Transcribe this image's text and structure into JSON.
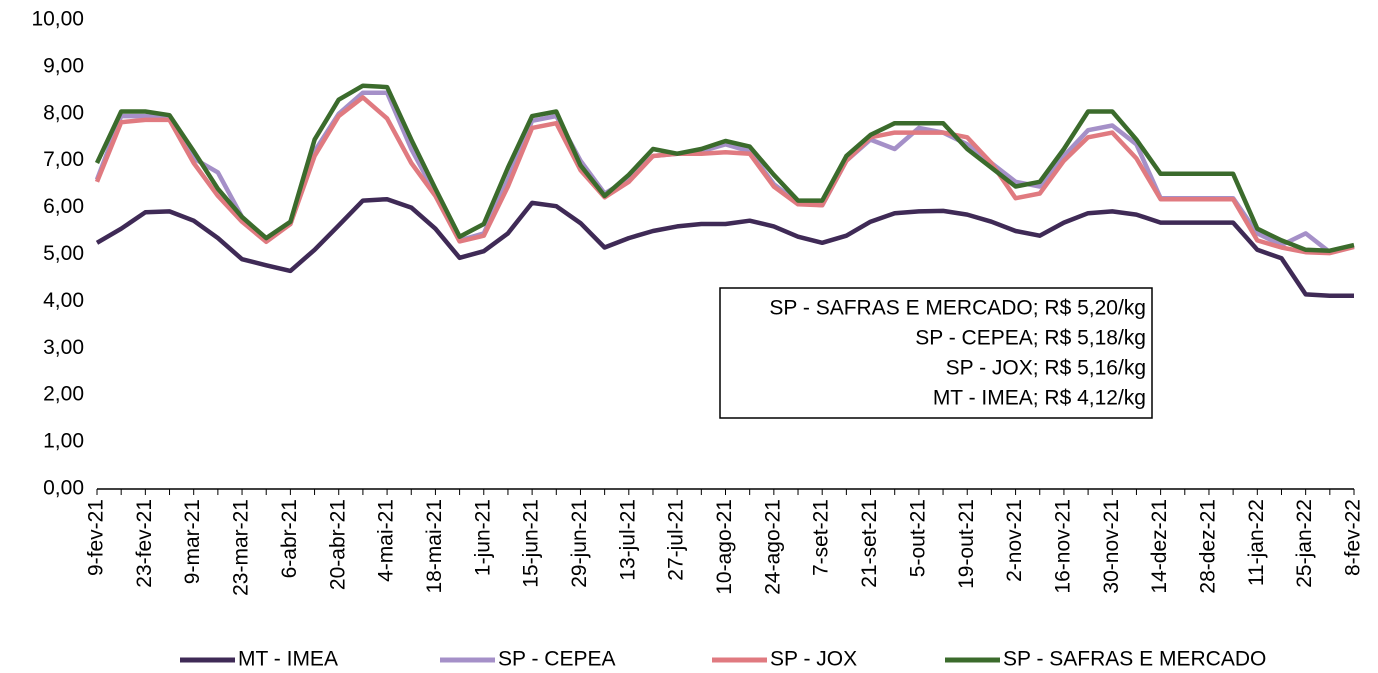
{
  "chart_data": {
    "type": "line",
    "categories": [
      "9-fev-21",
      null,
      "23-fev-21",
      null,
      "9-mar-21",
      null,
      "23-mar-21",
      null,
      "6-abr-21",
      null,
      "20-abr-21",
      null,
      "4-mai-21",
      null,
      "18-mai-21",
      null,
      "1-jun-21",
      null,
      "15-jun-21",
      null,
      "29-jun-21",
      null,
      "13-jul-21",
      null,
      "27-jul-21",
      null,
      "10-ago-21",
      null,
      "24-ago-21",
      null,
      "7-set-21",
      null,
      "21-set-21",
      null,
      "5-out-21",
      null,
      "19-out-21",
      null,
      "2-nov-21",
      null,
      "16-nov-21",
      null,
      "30-nov-21",
      null,
      "14-dez-21",
      null,
      "28-dez-21",
      null,
      "11-jan-22",
      null,
      "25-jan-22",
      null,
      "8-fev-22"
    ],
    "series": [
      {
        "name": "MT - IMEA",
        "color": "#3f2a56",
        "values": [
          5.25,
          5.55,
          5.9,
          5.92,
          5.72,
          5.35,
          4.9,
          4.77,
          4.65,
          5.1,
          5.62,
          6.15,
          6.18,
          6.0,
          5.55,
          4.93,
          5.07,
          5.45,
          6.1,
          6.03,
          5.67,
          5.15,
          5.35,
          5.5,
          5.6,
          5.65,
          5.65,
          5.72,
          5.6,
          5.38,
          5.25,
          5.4,
          5.7,
          5.88,
          5.92,
          5.93,
          5.85,
          5.7,
          5.5,
          5.4,
          5.68,
          5.88,
          5.92,
          5.85,
          5.68,
          5.68,
          5.68,
          5.68,
          5.1,
          4.92,
          4.15,
          4.12,
          4.12
        ]
      },
      {
        "name": "SP - CEPEA",
        "color": "#a590c8",
        "values": [
          6.6,
          7.95,
          7.95,
          7.9,
          7.05,
          6.75,
          5.8,
          5.3,
          5.65,
          7.2,
          8.0,
          8.45,
          8.45,
          7.25,
          6.3,
          5.3,
          5.45,
          6.6,
          7.85,
          7.95,
          7.0,
          6.3,
          6.6,
          7.1,
          7.15,
          7.2,
          7.35,
          7.2,
          6.5,
          6.1,
          6.05,
          7.0,
          7.45,
          7.25,
          7.7,
          7.6,
          7.35,
          6.95,
          6.55,
          6.45,
          7.1,
          7.65,
          7.75,
          7.35,
          6.2,
          6.2,
          6.2,
          6.2,
          5.45,
          5.2,
          5.45,
          5.05,
          5.18
        ]
      },
      {
        "name": "SP - JOX",
        "color": "#e07a80",
        "values": [
          6.55,
          7.82,
          7.87,
          7.87,
          6.95,
          6.25,
          5.7,
          5.27,
          5.65,
          7.1,
          7.95,
          8.35,
          7.9,
          6.95,
          6.25,
          5.28,
          5.4,
          6.45,
          7.7,
          7.8,
          6.8,
          6.22,
          6.55,
          7.1,
          7.15,
          7.15,
          7.18,
          7.15,
          6.45,
          6.07,
          6.05,
          7.0,
          7.5,
          7.6,
          7.6,
          7.6,
          7.5,
          6.95,
          6.2,
          6.3,
          7.0,
          7.5,
          7.6,
          7.05,
          6.18,
          6.18,
          6.18,
          6.18,
          5.3,
          5.15,
          5.05,
          5.03,
          5.16
        ]
      },
      {
        "name": "SP - SAFRAS E MERCADO",
        "color": "#3b6b2c",
        "values": [
          6.95,
          8.05,
          8.05,
          7.97,
          7.2,
          6.4,
          5.8,
          5.35,
          5.7,
          7.45,
          8.3,
          8.6,
          8.57,
          7.45,
          6.4,
          5.38,
          5.65,
          6.85,
          7.95,
          8.05,
          6.9,
          6.25,
          6.7,
          7.25,
          7.15,
          7.25,
          7.42,
          7.3,
          6.7,
          6.15,
          6.15,
          7.1,
          7.55,
          7.8,
          7.8,
          7.8,
          7.25,
          6.85,
          6.45,
          6.55,
          7.25,
          8.05,
          8.05,
          7.45,
          6.72,
          6.72,
          6.72,
          6.72,
          5.55,
          5.3,
          5.1,
          5.08,
          5.2
        ]
      }
    ],
    "ylim": [
      0,
      10
    ],
    "yticks": [
      {
        "value": 0,
        "label": "0,00"
      },
      {
        "value": 1,
        "label": "1,00"
      },
      {
        "value": 2,
        "label": "2,00"
      },
      {
        "value": 3,
        "label": "3,00"
      },
      {
        "value": 4,
        "label": "4,00"
      },
      {
        "value": 5,
        "label": "5,00"
      },
      {
        "value": 6,
        "label": "6,00"
      },
      {
        "value": 7,
        "label": "7,00"
      },
      {
        "value": 8,
        "label": "8,00"
      },
      {
        "value": 9,
        "label": "9,00"
      },
      {
        "value": 10,
        "label": "10,00"
      }
    ],
    "annotations": [
      "SP - SAFRAS E MERCADO; R$ 5,20/kg",
      "SP - CEPEA; R$ 5,18/kg",
      "SP - JOX; R$ 5,16/kg",
      "MT - IMEA; R$ 4,12/kg"
    ],
    "legend": "bottom"
  }
}
